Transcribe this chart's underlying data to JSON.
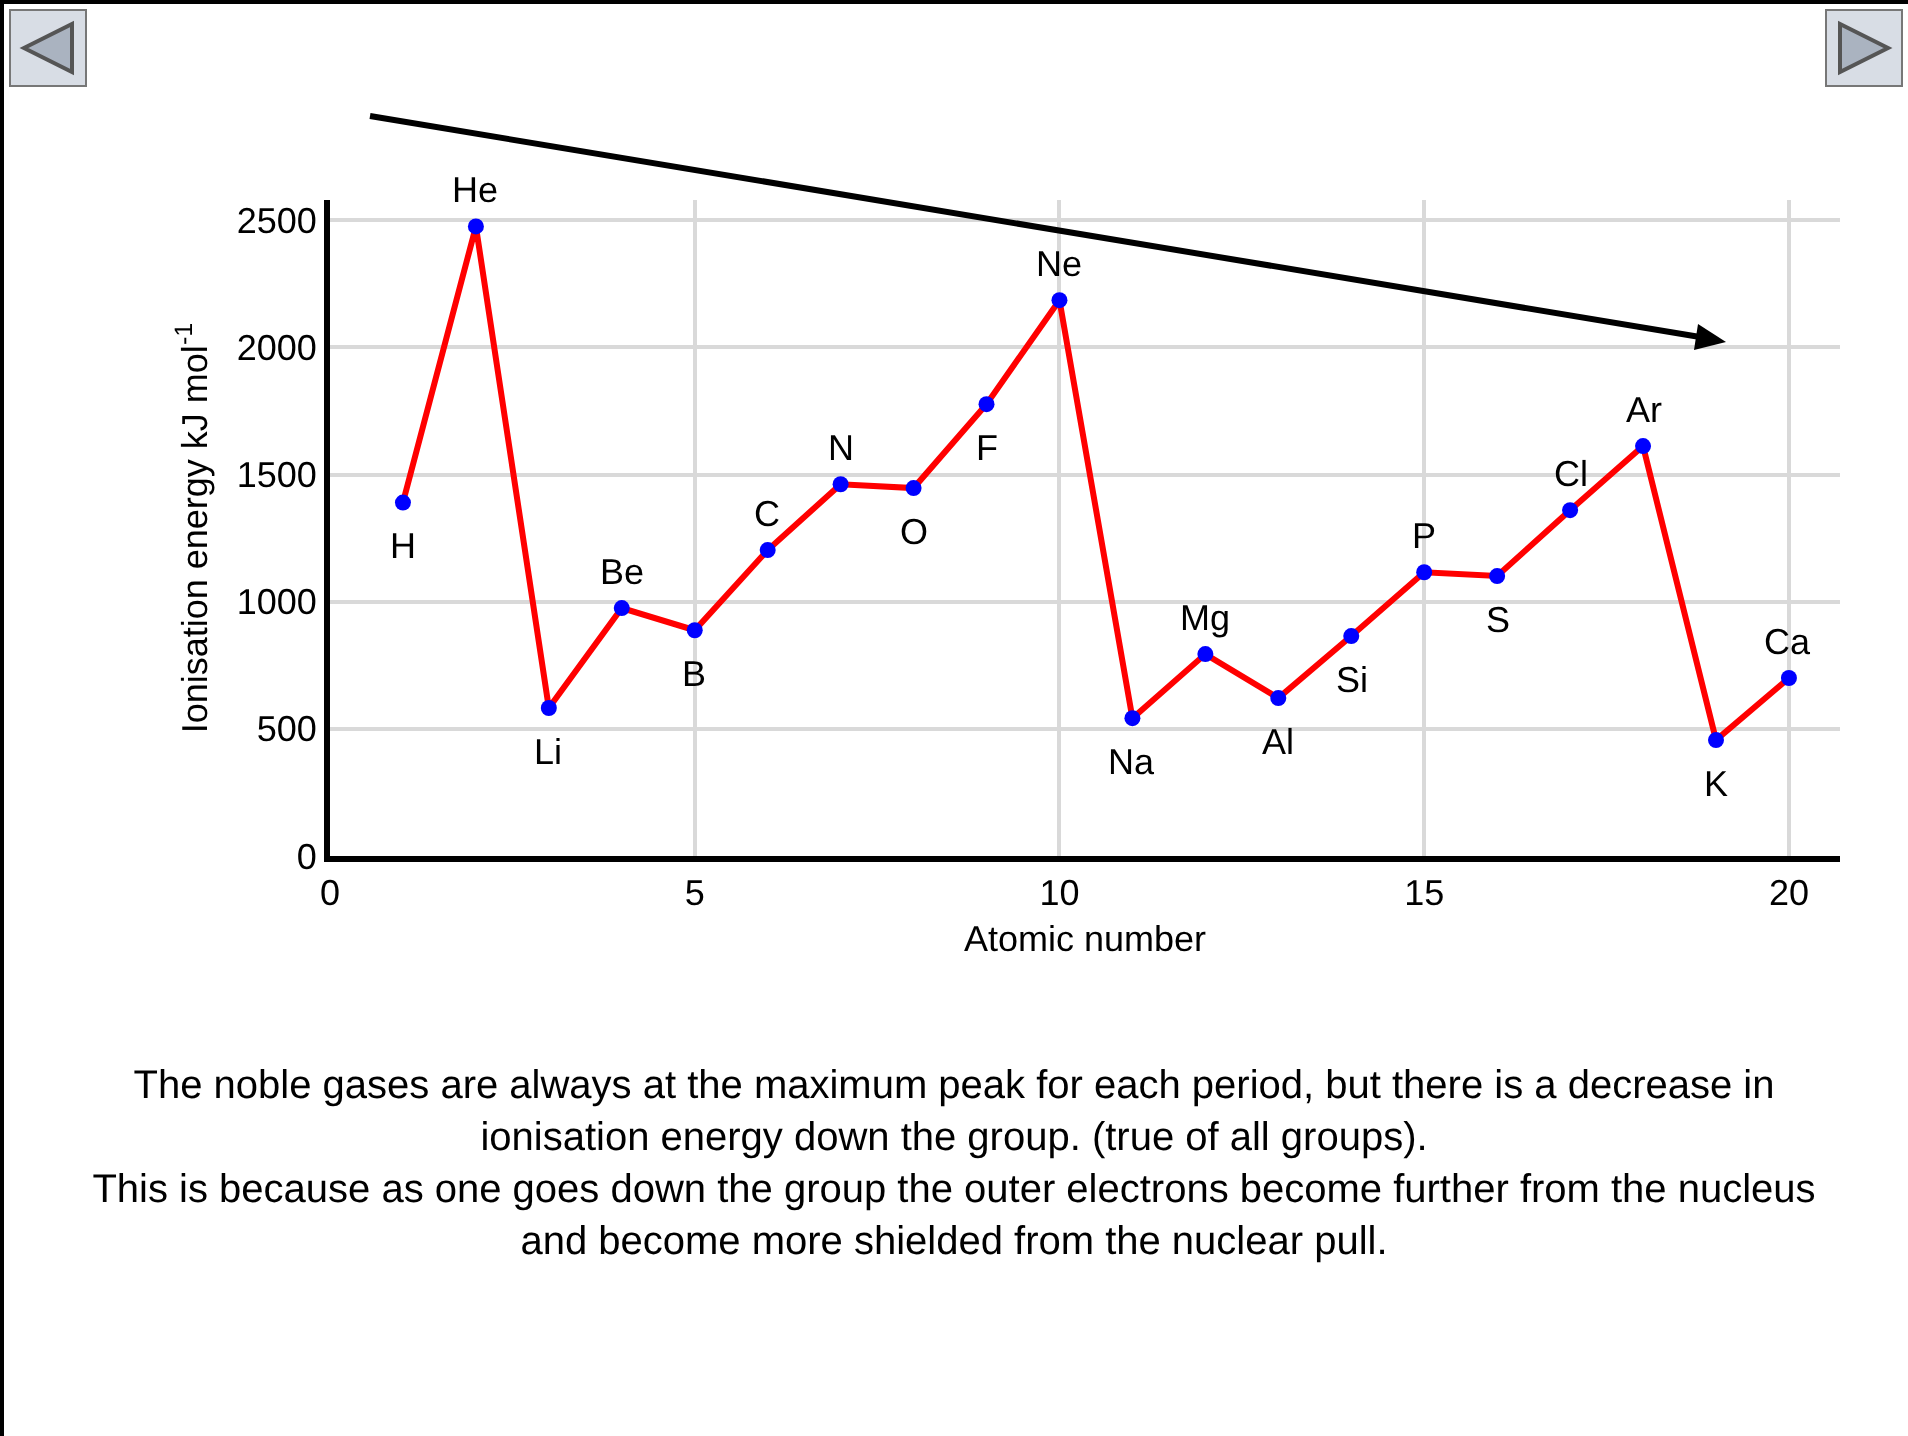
{
  "chart_data": {
    "type": "line",
    "xlabel": "Atomic number",
    "ylabel": "Ionisation energy kJ mol$^{-1}$",
    "x": [
      1,
      2,
      3,
      4,
      5,
      6,
      7,
      8,
      9,
      10,
      11,
      12,
      13,
      14,
      15,
      16,
      17,
      18,
      19,
      20
    ],
    "series": [
      {
        "color": "#ff0000",
        "colors": [
          "#0000ff",
          "#0000ff",
          "#0000ff",
          "#0000ff",
          "#0000ff",
          "#0000ff",
          "#0000ff",
          "#0000ff",
          "#0000ff",
          "#0000ff",
          "#0000ff",
          "#0000ff",
          "#0000ff",
          "#0000ff",
          "#0000ff",
          "#0000ff",
          "#0000ff",
          "#0000ff",
          "#0000ff",
          "#0000ff"
        ],
        "values": [
          1390,
          2476,
          582,
          975,
          888,
          1203,
          1462,
          1447,
          1777,
          2186,
          542,
          794,
          621,
          865,
          1116,
          1101,
          1360,
          1612,
          456,
          700
        ]
      }
    ],
    "xlim": [
      0,
      20.7
    ],
    "xticks": [
      0,
      5,
      10,
      15,
      20
    ],
    "ylim": [
      0,
      2580
    ],
    "yticks": [
      0,
      500,
      1000,
      1500,
      2000,
      2500
    ],
    "grid": true,
    "marker": "circle",
    "line_style": "solid",
    "annotations": [
      {
        "text": "H",
        "x": 1,
        "y": 1390
      },
      {
        "text": "He",
        "x": 2,
        "y": 2476
      },
      {
        "text": "Li",
        "x": 3,
        "y": 582
      },
      {
        "text": "Be",
        "x": 4,
        "y": 975
      },
      {
        "text": "B",
        "x": 5,
        "y": 888
      },
      {
        "text": "C",
        "x": 6,
        "y": 1203
      },
      {
        "text": "N",
        "x": 7,
        "y": 1462
      },
      {
        "text": "O",
        "x": 8,
        "y": 1447
      },
      {
        "text": "F",
        "x": 9,
        "y": 1777
      },
      {
        "text": "Ne",
        "x": 10,
        "y": 2186
      },
      {
        "text": "Na",
        "x": 11,
        "y": 542
      },
      {
        "text": "Mg",
        "x": 12,
        "y": 794
      },
      {
        "text": "Al",
        "x": 13,
        "y": 621
      },
      {
        "text": "Si",
        "x": 14,
        "y": 865
      },
      {
        "text": "P",
        "x": 15,
        "y": 1116
      },
      {
        "text": "S",
        "x": 16,
        "y": 1101
      },
      {
        "text": "Cl",
        "x": 17,
        "y": 1360
      },
      {
        "text": "Ar",
        "x": 18,
        "y": 1612
      },
      {
        "text": "K",
        "x": 19,
        "y": 456
      },
      {
        "text": "Ca",
        "x": 20,
        "y": 700
      },
      "The noble gases are always at the maximum peak for each period, but there is a decrease in ionisation energy down the group. (true of all groups).",
      "This is because as one goes down the group the outer electrons become further from the nucleus and become more shielded from the nuclear pull."
    ]
  }
}
